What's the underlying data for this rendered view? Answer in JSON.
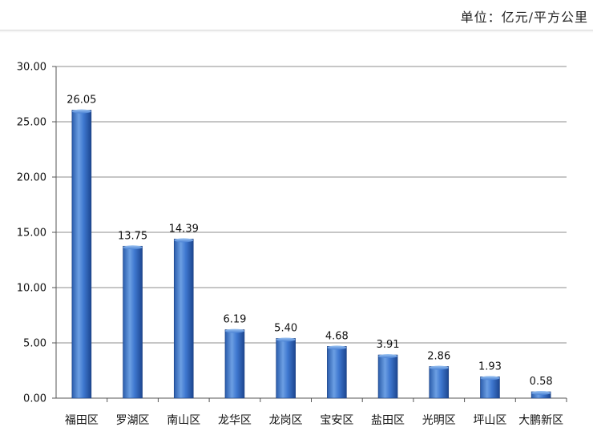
{
  "unit_label": "单位：亿元/平方公里",
  "colors": {
    "bar_dark": "#1f4e9c",
    "bar_mid": "#3f78d0",
    "bar_light": "#7fb0ec",
    "grid": "#8c8c8c"
  },
  "chart_data": {
    "type": "bar",
    "categories": [
      "福田区",
      "罗湖区",
      "南山区",
      "龙华区",
      "龙岗区",
      "宝安区",
      "盐田区",
      "光明区",
      "坪山区",
      "大鹏新区"
    ],
    "values": [
      26.05,
      13.75,
      14.39,
      6.19,
      5.4,
      4.68,
      3.91,
      2.86,
      1.93,
      0.58
    ],
    "value_labels": [
      "26.05",
      "13.75",
      "14.39",
      "6.19",
      "5.40",
      "4.68",
      "3.91",
      "2.86",
      "1.93",
      "0.58"
    ],
    "ylim": [
      0,
      30
    ],
    "yticks": [
      0,
      5,
      10,
      15,
      20,
      25,
      30
    ],
    "ytick_labels": [
      "0.00",
      "5.00",
      "10.00",
      "15.00",
      "20.00",
      "25.00",
      "30.00"
    ],
    "grid": true,
    "legend": "none"
  }
}
